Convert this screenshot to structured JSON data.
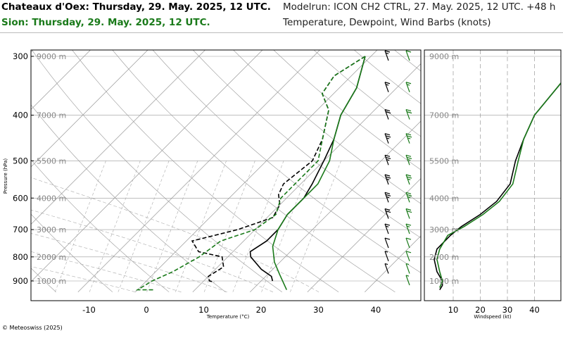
{
  "header": {
    "station_primary": "Chateaux d'Oex: Thursday, 29. May. 2025, 12 UTC.",
    "station_secondary": "Sion: Thursday, 29. May. 2025, 12 UTC.",
    "modelrun": "Modelrun: ICON CH2 CTRL, 27. May. 2025, 12 UTC. +48 h",
    "variables": "Temperature, Dewpoint, Wind Barbs (knots)"
  },
  "copyright": "© Meteoswiss (2025)",
  "colors": {
    "primary": "#000000",
    "secondary": "#1a7a1a",
    "grid": "#999999",
    "dash": "#aaaaaa"
  },
  "chart_data": [
    {
      "type": "line",
      "name": "skew-t",
      "xlabel": "Temperature (°C)",
      "ylabel": "Pressure (hPa)",
      "xlim": [
        -20,
        47
      ],
      "ylim_pressure": [
        950,
        295
      ],
      "x_ticks": [
        "-10",
        "0",
        "10",
        "20",
        "30",
        "40"
      ],
      "x_tick_values": [
        -10,
        0,
        10,
        20,
        30,
        40
      ],
      "pressure_ticks": [
        "300",
        "400",
        "500",
        "600",
        "700",
        "800",
        "900"
      ],
      "pressure_tick_values": [
        300,
        400,
        500,
        600,
        700,
        800,
        900
      ],
      "altitude_labels": [
        "9000 m",
        "7000 m",
        "5500 m",
        "4000 m",
        "3000 m",
        "2000 m",
        "1000 m"
      ],
      "altitude_pressures": [
        300,
        400,
        500,
        600,
        700,
        800,
        900
      ],
      "series": [
        {
          "station": "primary",
          "kind": "temperature",
          "points": [
            [
              -1,
              300
            ],
            [
              3,
              350
            ],
            [
              5,
              400
            ],
            [
              8,
              450
            ],
            [
              10,
              500
            ],
            [
              12,
              560
            ],
            [
              13,
              600
            ],
            [
              13,
              650
            ],
            [
              14,
              700
            ],
            [
              14,
              740
            ],
            [
              13,
              780
            ],
            [
              14,
              800
            ],
            [
              18,
              850
            ],
            [
              21,
              880
            ],
            [
              22,
              900
            ]
          ]
        },
        {
          "station": "primary",
          "kind": "dewpoint",
          "points": [
            [
              -1,
              300
            ],
            [
              -3,
              330
            ],
            [
              -2,
              360
            ],
            [
              2,
              390
            ],
            [
              6,
              450
            ],
            [
              8,
              500
            ],
            [
              7,
              560
            ],
            [
              8,
              590
            ],
            [
              10,
              620
            ],
            [
              11,
              660
            ],
            [
              7,
              700
            ],
            [
              1,
              740
            ],
            [
              4,
              780
            ],
            [
              9,
              800
            ],
            [
              11,
              840
            ],
            [
              10,
              880
            ],
            [
              11,
              900
            ],
            [
              12,
              905
            ]
          ]
        },
        {
          "station": "secondary",
          "kind": "temperature",
          "points": [
            [
              -1,
              300
            ],
            [
              3,
              350
            ],
            [
              5,
              400
            ],
            [
              8,
              450
            ],
            [
              11,
              500
            ],
            [
              13,
              560
            ],
            [
              13,
              600
            ],
            [
              13,
              650
            ],
            [
              14,
              700
            ],
            [
              16,
              760
            ],
            [
              19,
              820
            ],
            [
              22,
              870
            ],
            [
              26,
              940
            ]
          ]
        },
        {
          "station": "secondary",
          "kind": "dewpoint",
          "points": [
            [
              -1,
              300
            ],
            [
              -3,
              330
            ],
            [
              -2,
              360
            ],
            [
              2,
              390
            ],
            [
              6,
              450
            ],
            [
              9,
              500
            ],
            [
              9,
              560
            ],
            [
              9,
              600
            ],
            [
              11,
              650
            ],
            [
              10,
              700
            ],
            [
              6,
              740
            ],
            [
              5,
              800
            ],
            [
              3,
              860
            ],
            [
              1,
              900
            ],
            [
              0,
              940
            ],
            [
              3,
              940
            ]
          ]
        }
      ],
      "wind_barbs": {
        "primary": [
          [
            300,
            15
          ],
          [
            350,
            15
          ],
          [
            400,
            20
          ],
          [
            450,
            25
          ],
          [
            500,
            25
          ],
          [
            550,
            25
          ],
          [
            600,
            25
          ],
          [
            650,
            20
          ],
          [
            700,
            15
          ],
          [
            750,
            10
          ],
          [
            800,
            5
          ],
          [
            850,
            5
          ]
        ],
        "secondary": [
          [
            300,
            10
          ],
          [
            350,
            15
          ],
          [
            400,
            20
          ],
          [
            450,
            25
          ],
          [
            500,
            25
          ],
          [
            550,
            25
          ],
          [
            600,
            25
          ],
          [
            650,
            20
          ],
          [
            700,
            15
          ],
          [
            750,
            10
          ],
          [
            800,
            10
          ],
          [
            850,
            5
          ],
          [
            900,
            5
          ]
        ]
      }
    },
    {
      "type": "line",
      "name": "windspeed-profile",
      "xlabel": "Windspeed (kt)",
      "xlim": [
        -5,
        50
      ],
      "x_ticks": [
        "10",
        "20",
        "30",
        "40"
      ],
      "x_tick_values": [
        10,
        20,
        30,
        40
      ],
      "altitude_labels": [
        "9000 m",
        "7000 m",
        "5500 m",
        "4000 m",
        "3000 m",
        "2000 m",
        "1000 m"
      ],
      "series": [
        {
          "station": "primary",
          "points": [
            [
              40,
              400
            ],
            [
              36,
              450
            ],
            [
              33,
              500
            ],
            [
              31,
              560
            ],
            [
              26,
              610
            ],
            [
              20,
              650
            ],
            [
              13,
              690
            ],
            [
              9,
              720
            ],
            [
              4,
              770
            ],
            [
              3,
              810
            ],
            [
              4,
              860
            ],
            [
              6,
              900
            ],
            [
              6,
              920
            ],
            [
              5,
              940
            ]
          ]
        },
        {
          "station": "secondary",
          "points": [
            [
              40,
              400
            ],
            [
              36,
              450
            ],
            [
              34,
              500
            ],
            [
              32,
              560
            ],
            [
              27,
              610
            ],
            [
              21,
              650
            ],
            [
              14,
              690
            ],
            [
              8,
              720
            ],
            [
              5,
              770
            ],
            [
              4,
              810
            ],
            [
              5,
              860
            ],
            [
              6,
              900
            ],
            [
              5,
              930
            ]
          ]
        }
      ]
    }
  ]
}
